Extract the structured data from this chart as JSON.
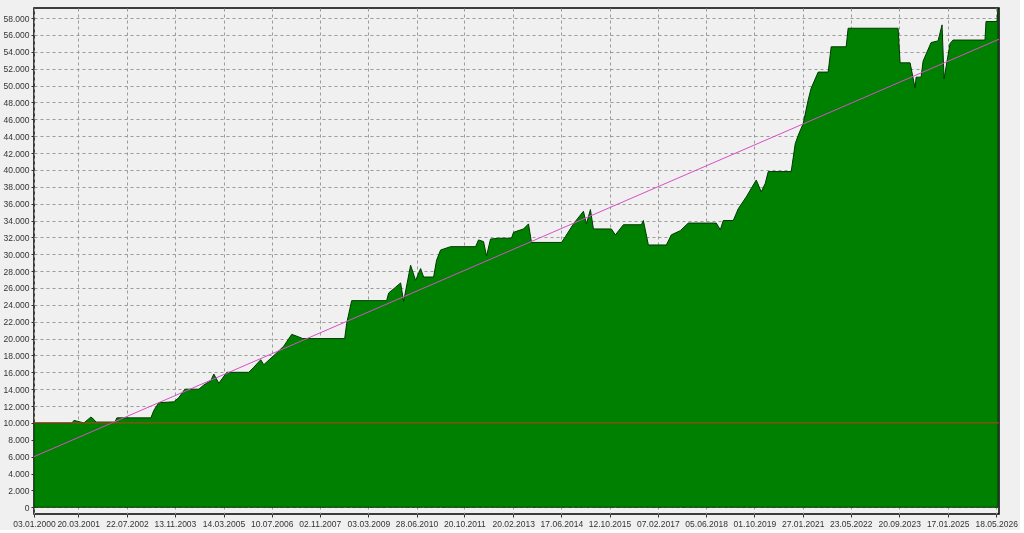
{
  "chart_data": {
    "type": "area",
    "xlim": [
      "2000-01-03",
      "2026-06-15"
    ],
    "ylim": [
      -800,
      59200
    ],
    "xticks": [
      {
        "value": "2000-01-03",
        "label": "03.01.2000"
      },
      {
        "value": "2001-03-20",
        "label": "20.03.2001"
      },
      {
        "value": "2002-07-22",
        "label": "22.07.2002"
      },
      {
        "value": "2003-11-13",
        "label": "13.11.2003"
      },
      {
        "value": "2005-03-14",
        "label": "14.03.2005"
      },
      {
        "value": "2006-07-10",
        "label": "10.07.2006"
      },
      {
        "value": "2007-11-02",
        "label": "02.11.2007"
      },
      {
        "value": "2009-03-03",
        "label": "03.03.2009"
      },
      {
        "value": "2010-06-28",
        "label": "28.06.2010"
      },
      {
        "value": "2011-10-20",
        "label": "20.10.2011"
      },
      {
        "value": "2013-02-20",
        "label": "20.02.2013"
      },
      {
        "value": "2014-06-17",
        "label": "17.06.2014"
      },
      {
        "value": "2015-10-12",
        "label": "12.10.2015"
      },
      {
        "value": "2017-02-07",
        "label": "07.02.2017"
      },
      {
        "value": "2018-06-05",
        "label": "05.06.2018"
      },
      {
        "value": "2019-10-01",
        "label": "01.10.2019"
      },
      {
        "value": "2021-01-27",
        "label": "27.01.2021"
      },
      {
        "value": "2022-05-23",
        "label": "23.05.2022"
      },
      {
        "value": "2023-09-20",
        "label": "20.09.2023"
      },
      {
        "value": "2025-01-17",
        "label": "17.01.2025"
      },
      {
        "value": "2026-05-18",
        "label": "18.05.2026"
      }
    ],
    "yticks": [
      0,
      {
        "value": 2000,
        "label": "2.000"
      },
      {
        "value": 4000,
        "label": "4.000"
      },
      {
        "value": 6000,
        "label": "6.000"
      },
      {
        "value": 8000,
        "label": "8.000"
      },
      {
        "value": 10000,
        "label": "10.000"
      },
      {
        "value": 12000,
        "label": "12.000"
      },
      {
        "value": 14000,
        "label": "14.000"
      },
      {
        "value": 16000,
        "label": "16.000"
      },
      {
        "value": 18000,
        "label": "18.000"
      },
      {
        "value": 20000,
        "label": "20.000"
      },
      {
        "value": 22000,
        "label": "22.000"
      },
      {
        "value": 24000,
        "label": "24.000"
      },
      {
        "value": 26000,
        "label": "26.000"
      },
      {
        "value": 28000,
        "label": "28.000"
      },
      {
        "value": 30000,
        "label": "30.000"
      },
      {
        "value": 32000,
        "label": "32.000"
      },
      {
        "value": 34000,
        "label": "34.000"
      },
      {
        "value": 36000,
        "label": "36.000"
      },
      {
        "value": 38000,
        "label": "38.000"
      },
      {
        "value": 40000,
        "label": "40.000"
      },
      {
        "value": 42000,
        "label": "42.000"
      },
      {
        "value": 44000,
        "label": "44.000"
      },
      {
        "value": 46000,
        "label": "46.000"
      },
      {
        "value": 48000,
        "label": "48.000"
      },
      {
        "value": 50000,
        "label": "50.000"
      },
      {
        "value": 52000,
        "label": "52.000"
      },
      {
        "value": 54000,
        "label": "54.000"
      },
      {
        "value": 56000,
        "label": "56.000"
      },
      {
        "value": 58000,
        "label": "58.000"
      }
    ],
    "grid": true,
    "series": [
      {
        "color": "#008000",
        "x": [
          "2000-01-03",
          "2001-01-17",
          "2001-02-06",
          "2001-05-17",
          "2001-07-26",
          "2001-08-25",
          "2001-09-14",
          "2002-03-23",
          "2002-04-12",
          "2003-03-18",
          "2003-04-17",
          "2003-06-06",
          "2003-11-03",
          "2003-12-23",
          "2004-02-21",
          "2004-07-10",
          "2004-08-29",
          "2004-11-07",
          "2004-12-07",
          "2005-01-26",
          "2005-04-16",
          "2005-11-22",
          "2006-01-11",
          "2006-03-22",
          "2006-04-21",
          "2006-08-19",
          "2006-11-07",
          "2007-01-26",
          "2007-04-06",
          "2007-05-16",
          "2008-07-09",
          "2008-07-29",
          "2008-09-17",
          "2009-09-02",
          "2009-09-22",
          "2009-12-01",
          "2010-01-20",
          "2010-02-19",
          "2010-04-30",
          "2010-06-19",
          "2010-08-08",
          "2010-09-07",
          "2010-12-16",
          "2011-01-15",
          "2011-02-24",
          "2011-06-04",
          "2012-02-09",
          "2012-03-10",
          "2012-04-29",
          "2012-05-29",
          "2012-07-08",
          "2012-09-26",
          "2013-02-03",
          "2013-02-23",
          "2013-06-03",
          "2013-07-23",
          "2013-08-22",
          "2014-06-18",
          "2014-07-28",
          "2014-10-16",
          "2015-01-24",
          "2015-02-23",
          "2015-04-04",
          "2015-05-04",
          "2015-10-31",
          "2015-12-10",
          "2016-02-28",
          "2016-08-26",
          "2016-09-15",
          "2016-11-04",
          "2017-05-03",
          "2017-06-22",
          "2017-09-20",
          "2017-12-09",
          "2018-09-15",
          "2018-10-25",
          "2018-11-24",
          "2019-03-04",
          "2019-04-23",
          "2019-07-12",
          "2019-10-20",
          "2019-12-09",
          "2020-01-18",
          "2020-02-17",
          "2020-10-04",
          "2020-11-13",
          "2020-12-13",
          "2021-02-01",
          "2021-03-23",
          "2021-04-22",
          "2021-07-01",
          "2021-10-09",
          "2021-11-08",
          "2022-04-07",
          "2022-04-27",
          "2023-09-09",
          "2023-09-29",
          "2024-01-07",
          "2024-02-26",
          "2024-03-07",
          "2024-04-26",
          "2024-05-16",
          "2024-08-04",
          "2024-10-13",
          "2024-11-22",
          "2024-12-12",
          "2025-02-10",
          "2025-03-12",
          "2026-01-26",
          "2026-02-05",
          "2026-05-26",
          "2026-06-05"
        ],
        "values": [
          10000,
          10000,
          10300,
          10000,
          10700,
          10400,
          10100,
          10100,
          10600,
          10600,
          11500,
          12400,
          12500,
          13000,
          14000,
          14000,
          14500,
          15000,
          15800,
          14700,
          16000,
          16000,
          16600,
          17500,
          16900,
          18200,
          19100,
          20500,
          20200,
          20000,
          20000,
          21800,
          24500,
          24500,
          25400,
          26100,
          26600,
          24400,
          28700,
          26900,
          28300,
          27300,
          27300,
          29300,
          30500,
          30900,
          30900,
          31700,
          31500,
          29800,
          31800,
          31900,
          31900,
          32600,
          33000,
          33600,
          31400,
          31400,
          32100,
          33600,
          35100,
          33600,
          35300,
          33000,
          33000,
          32300,
          33500,
          33500,
          34000,
          31100,
          31100,
          32300,
          32800,
          33700,
          33700,
          32900,
          34000,
          34000,
          35400,
          36800,
          38800,
          37400,
          38400,
          39800,
          39800,
          43100,
          44100,
          45500,
          48300,
          49700,
          51600,
          51600,
          54600,
          54600,
          56800,
          56800,
          52700,
          52700,
          49700,
          51000,
          51000,
          52900,
          55100,
          55300,
          57200,
          50800,
          55000,
          55400,
          55400,
          57600,
          57600,
          59100
        ]
      },
      {
        "type": "line",
        "color": "#d84fc8",
        "x": [
          "2000-01-03",
          "2026-06-15"
        ],
        "values": [
          6000,
          55500
        ]
      }
    ],
    "ref_lines": [
      {
        "axis": "y",
        "value": 10000,
        "color": "#b8401a"
      }
    ]
  }
}
